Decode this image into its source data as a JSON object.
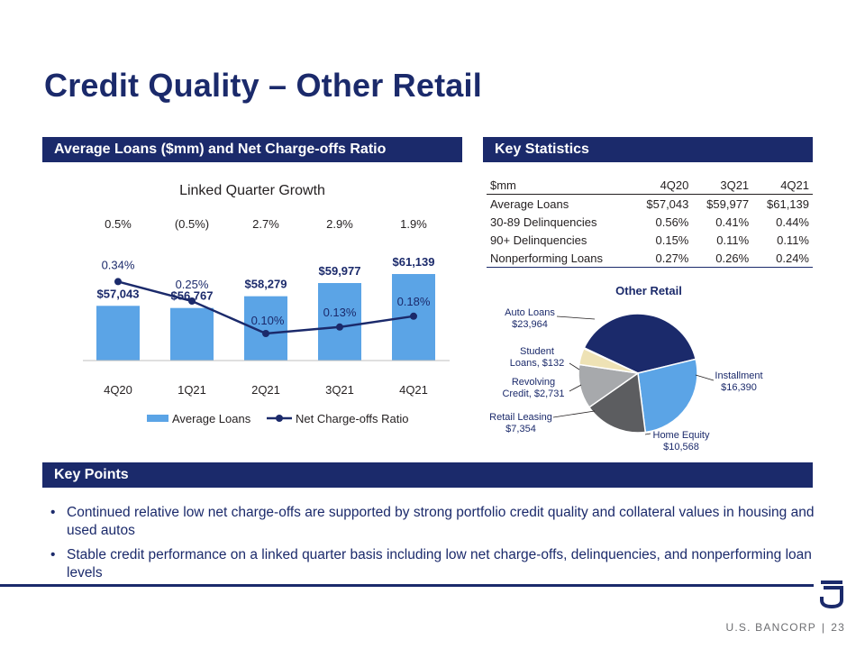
{
  "title": "Credit Quality – Other Retail",
  "bands": {
    "left": "Average Loans ($mm) and Net Charge-offs Ratio",
    "right": "Key Statistics",
    "key_points": "Key Points"
  },
  "growth": {
    "title": "Linked Quarter Growth",
    "values": [
      "0.5%",
      "(0.5%)",
      "2.7%",
      "2.9%",
      "1.9%"
    ]
  },
  "colors": {
    "navy": "#1b2a6b",
    "bar_blue": "#5ba4e6",
    "line_navy": "#1b2a6b"
  },
  "chart_data": [
    {
      "type": "bar",
      "categories": [
        "4Q20",
        "1Q21",
        "2Q21",
        "3Q21",
        "4Q21"
      ],
      "series": [
        {
          "name": "Average Loans",
          "type": "bar",
          "values": [
            57043,
            56767,
            58279,
            59977,
            61139
          ],
          "labels": [
            "$57,043",
            "$56,767",
            "$58,279",
            "$59,977",
            "$61,139"
          ]
        },
        {
          "name": "Net Charge-offs Ratio",
          "type": "line",
          "values": [
            0.34,
            0.25,
            0.1,
            0.13,
            0.18
          ],
          "labels": [
            "0.34%",
            "0.25%",
            "0.10%",
            "0.13%",
            "0.18%"
          ]
        }
      ],
      "legend": "bottom",
      "grid": false
    },
    {
      "type": "pie",
      "title": "Other Retail",
      "slices": [
        {
          "label": "Auto Loans",
          "value": 23964,
          "display": "Auto Loans\n$23,964",
          "color": "#1b2a6b"
        },
        {
          "label": "Installment",
          "value": 16390,
          "display": "Installment\n$16,390",
          "color": "#5ba4e6"
        },
        {
          "label": "Home Equity",
          "value": 10568,
          "display": "Home Equity\n$10,568",
          "color": "#5c5d60"
        },
        {
          "label": "Retail Leasing",
          "value": 7354,
          "display": "Retail Leasing\n$7,354",
          "color": "#a7a9ac"
        },
        {
          "label": "Revolving Credit",
          "value": 2731,
          "display": "Revolving\nCredit, $2,731",
          "color": "#eee2b5"
        },
        {
          "label": "Student Loans",
          "value": 132,
          "display": "Student\nLoans, $132",
          "color": "#5ba4e6"
        }
      ]
    }
  ],
  "stats": {
    "header": [
      "$mm",
      "4Q20",
      "3Q21",
      "4Q21"
    ],
    "rows": [
      [
        "Average Loans",
        "$57,043",
        "$59,977",
        "$61,139"
      ],
      [
        "30-89 Delinquencies",
        "0.56%",
        "0.41%",
        "0.44%"
      ],
      [
        "90+ Delinquencies",
        "0.15%",
        "0.11%",
        "0.11%"
      ],
      [
        "Nonperforming Loans",
        "0.27%",
        "0.26%",
        "0.24%"
      ]
    ]
  },
  "pie_title": "Other Retail",
  "key_points": [
    "Continued relative low net charge-offs are supported by strong portfolio credit quality and collateral values in housing and used autos",
    "Stable credit performance on a linked quarter basis including low net charge-offs, delinquencies, and nonperforming loan levels"
  ],
  "footer": {
    "company": "U.S. BANCORP",
    "separator": "|",
    "page": "23"
  }
}
